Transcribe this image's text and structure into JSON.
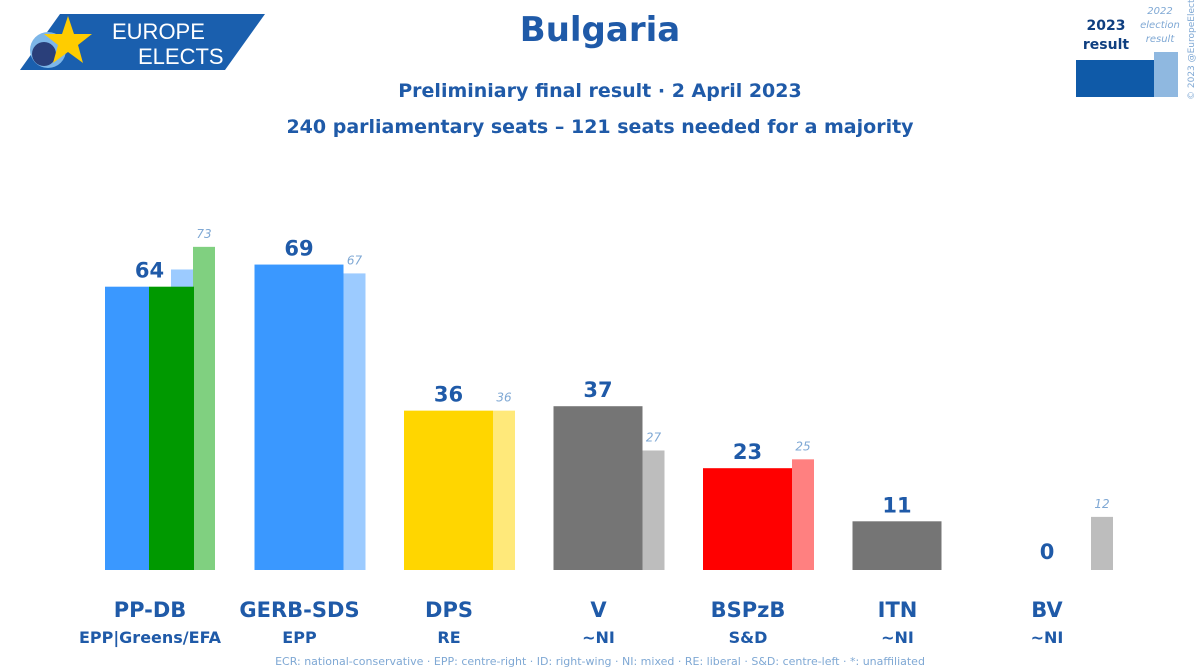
{
  "logo": {
    "line1": "EUROPE",
    "line2": "ELECTS"
  },
  "header": {
    "title": "Bulgaria",
    "subtitle": "Preliminiary final result · 2 April 2023",
    "seats_note": "240 parliamentary seats – 121 seats needed for a majority"
  },
  "legend": {
    "current_label_1": "2023",
    "current_label_2": "result",
    "previous_label_1": "2022",
    "previous_label_2": "election",
    "previous_label_3": "result",
    "current_color": "#0f5aa8",
    "previous_color": "#8fb8e0"
  },
  "copyright": "© 2023 @EuropeElects",
  "footer": "ECR: national-conservative · EPP: centre-right · ID: right-wing · NI: mixed · RE: liberal · S&D: centre-left · *: unaffiliated",
  "chart_data": {
    "type": "bar",
    "ylim": [
      0,
      75
    ],
    "categories": [
      "PP-DB",
      "GERB-SDS",
      "DPS",
      "V",
      "BSPzB",
      "ITN",
      "BV"
    ],
    "groups": [
      "EPP|Greens/EFA",
      "EPP",
      "RE",
      "~NI",
      "S&D",
      "~NI",
      "~NI"
    ],
    "series": [
      {
        "values": [
          64,
          69,
          36,
          37,
          23,
          11,
          0
        ]
      },
      {
        "values": [
          73,
          67,
          36,
          27,
          25,
          null,
          12
        ]
      }
    ],
    "colors_2023": [
      [
        "#3a98ff",
        "#009900"
      ],
      [
        "#3a98ff"
      ],
      [
        "#ffd600"
      ],
      [
        "#757575"
      ],
      [
        "#ff0000"
      ],
      [
        "#757575"
      ],
      [
        "#757575"
      ]
    ],
    "colors_2022": [
      [
        "#9ccbff",
        "#80d080"
      ],
      [
        "#9ccbff"
      ],
      [
        "#ffe97a"
      ],
      [
        "#bdbdbd"
      ],
      [
        "#ff8080"
      ],
      [],
      [
        "#bdbdbd"
      ]
    ]
  }
}
